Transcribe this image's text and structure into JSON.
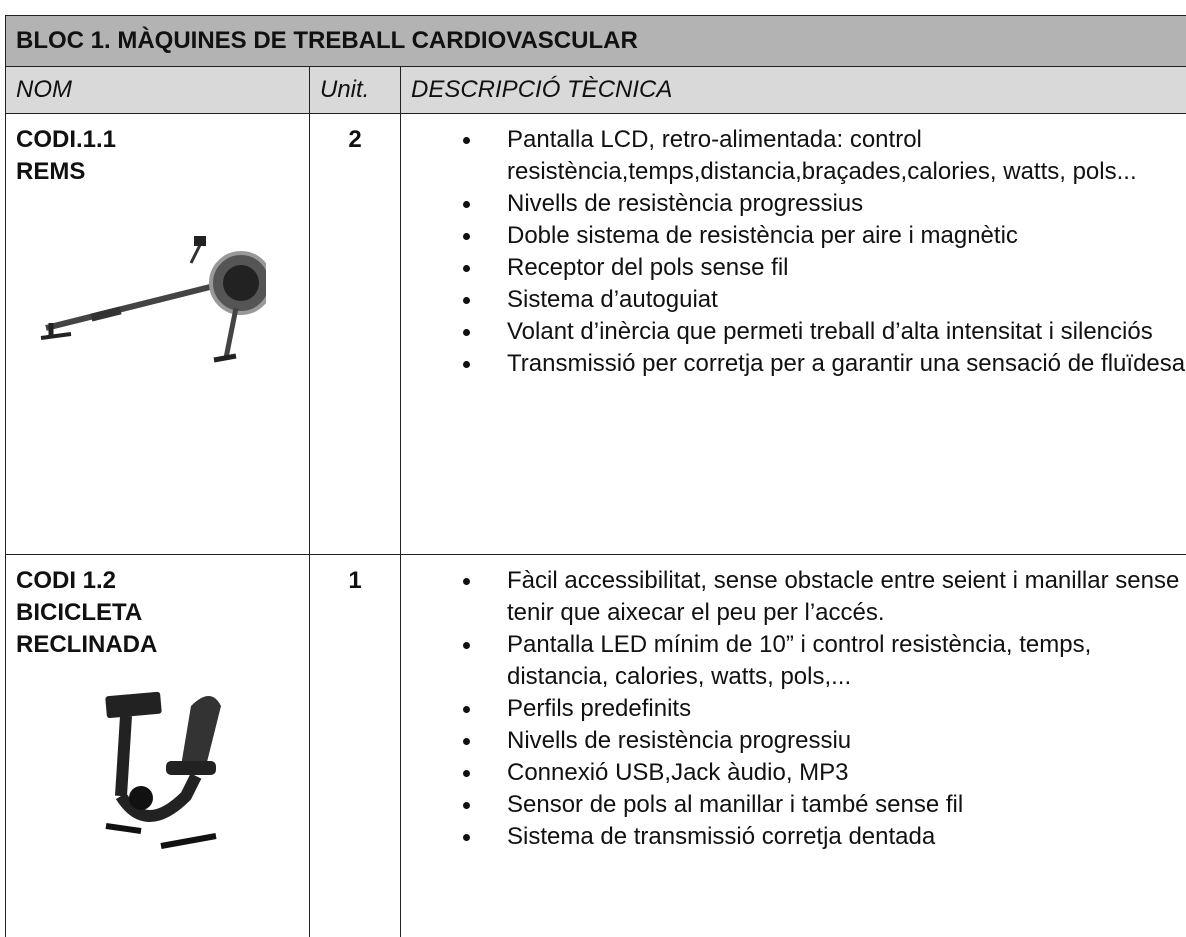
{
  "header": {
    "title": "BLOC 1. MÀQUINES DE TREBALL CARDIOVASCULAR"
  },
  "columns": [
    "NOM",
    "Unit.",
    "DESCRIPCIÓ TÈCNICA"
  ],
  "rows": [
    {
      "code": "CODI.1.1",
      "name": "REMS",
      "units": "2",
      "items": [
        "Pantalla LCD, retro-alimentada: control resistència,temps,distancia,braçades,calories, watts, pols...",
        "Nivells de resistència progressius",
        "Doble sistema de resistència per aire i magnètic",
        "Receptor del pols sense fil",
        "Sistema d’autoguiat",
        "Volant d’inèrcia que permeti treball d’alta intensitat i silenciós",
        "Transmissió per corretja per a garantir una sensació de fluïdesa"
      ]
    },
    {
      "code": "CODI 1.2",
      "name": "BICICLETA RECLINADA",
      "units": "1",
      "items": [
        "Fàcil accessibilitat, sense obstacle entre seient i manillar sense tenir que aixecar el peu per l’accés.",
        "Pantalla LED  mínim de 10” i control resistència, temps, distancia, calories, watts, pols,...",
        "Perfils predefinits",
        "Nivells de resistència progressiu",
        "Connexió USB,Jack àudio, MP3",
        "Sensor de pols al manillar i també sense fil",
        "Sistema de transmissió corretja dentada"
      ]
    }
  ]
}
